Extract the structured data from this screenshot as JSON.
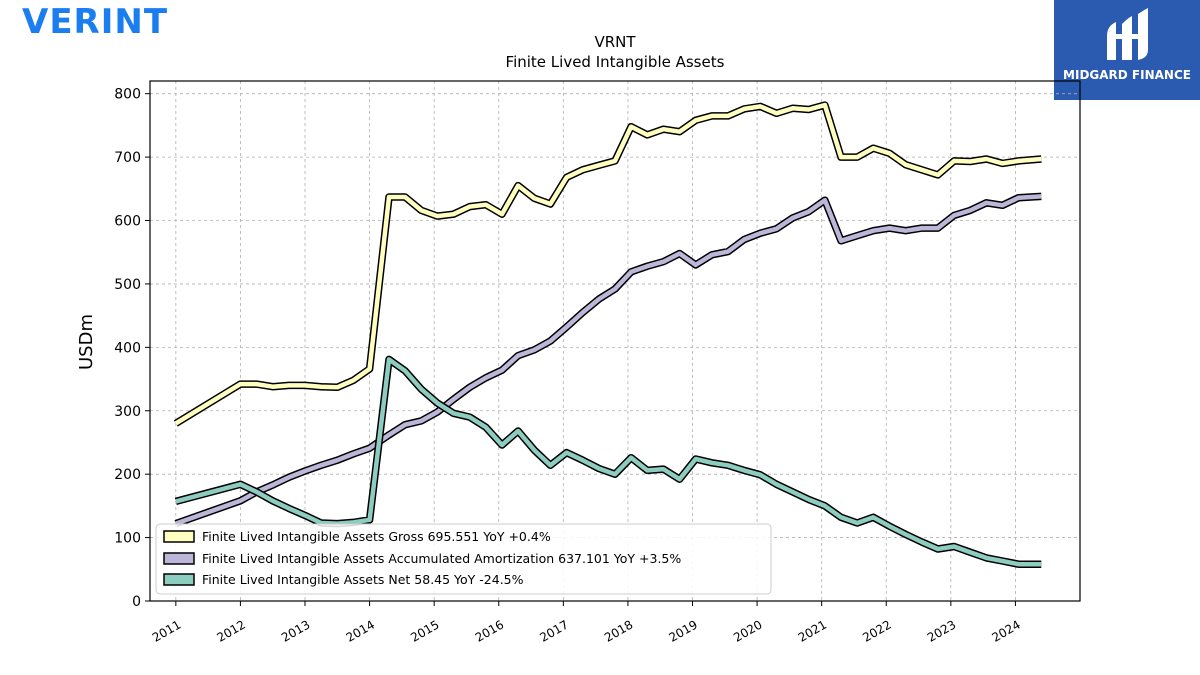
{
  "header": {
    "brand_logo_text": "VERINT",
    "brand_color": "#1a7ef0",
    "publisher_name": "MIDGARD FINANCE",
    "publisher_color": "#2a5bb0"
  },
  "chart_data": {
    "type": "line",
    "title": "VRNT",
    "subtitle": "Finite Lived Intangible Assets",
    "xlabel": "",
    "ylabel": "USDm",
    "xlim": [
      2010.6,
      2025.0
    ],
    "ylim": [
      0,
      820
    ],
    "yticks": [
      0,
      100,
      200,
      300,
      400,
      500,
      600,
      700,
      800
    ],
    "xticks": [
      2011,
      2012,
      2013,
      2014,
      2015,
      2016,
      2017,
      2018,
      2019,
      2020,
      2021,
      2022,
      2023,
      2024
    ],
    "grid": true,
    "legend_position": "bottom-left",
    "series": [
      {
        "name": "Finite Lived Intangible Assets Gross",
        "label": "Finite Lived Intangible Assets Gross  695.551 YoY +0.4%",
        "color": "#ffffc0",
        "x": [
          2011.0,
          2012.0,
          2012.25,
          2012.5,
          2012.75,
          2013.0,
          2013.25,
          2013.5,
          2013.75,
          2014.0,
          2014.3,
          2014.55,
          2014.8,
          2015.05,
          2015.3,
          2015.55,
          2015.8,
          2016.05,
          2016.3,
          2016.55,
          2016.8,
          2017.05,
          2017.3,
          2017.55,
          2017.8,
          2018.05,
          2018.3,
          2018.55,
          2018.8,
          2019.05,
          2019.3,
          2019.55,
          2019.8,
          2020.05,
          2020.3,
          2020.55,
          2020.8,
          2021.05,
          2021.3,
          2021.55,
          2021.8,
          2022.05,
          2022.3,
          2022.55,
          2022.8,
          2023.05,
          2023.3,
          2023.55,
          2023.8,
          2024.05,
          2024.4
        ],
        "values": [
          280,
          342,
          342,
          338,
          340,
          340,
          338,
          337,
          348,
          366,
          637,
          637,
          616,
          607,
          610,
          622,
          625,
          610,
          655,
          635,
          626,
          668,
          680,
          687,
          694,
          748,
          735,
          744,
          740,
          758,
          765,
          765,
          776,
          780,
          769,
          777,
          775,
          782,
          700,
          700,
          714,
          706,
          688,
          680,
          672,
          694,
          693,
          697,
          690,
          694,
          697
        ]
      },
      {
        "name": "Finite Lived Intangible Assets Accumulated Amortization",
        "label": "Finite Lived Intangible Assets Accumulated Amortization  637.101 YoY +3.5%",
        "color": "#bcb6d8",
        "x": [
          2011.0,
          2012.0,
          2012.25,
          2012.5,
          2012.75,
          2013.0,
          2013.25,
          2013.5,
          2013.75,
          2014.0,
          2014.3,
          2014.55,
          2014.8,
          2015.05,
          2015.3,
          2015.55,
          2015.8,
          2016.05,
          2016.3,
          2016.55,
          2016.8,
          2017.05,
          2017.3,
          2017.55,
          2017.8,
          2018.05,
          2018.3,
          2018.55,
          2018.8,
          2019.05,
          2019.3,
          2019.55,
          2019.8,
          2020.05,
          2020.3,
          2020.55,
          2020.8,
          2021.05,
          2021.3,
          2021.55,
          2021.8,
          2022.05,
          2022.3,
          2022.55,
          2022.8,
          2023.05,
          2023.3,
          2023.55,
          2023.8,
          2024.05,
          2024.4
        ],
        "values": [
          122,
          158,
          172,
          183,
          195,
          205,
          214,
          222,
          232,
          241,
          262,
          278,
          284,
          298,
          318,
          337,
          352,
          364,
          387,
          396,
          410,
          432,
          455,
          476,
          492,
          519,
          528,
          535,
          548,
          530,
          546,
          551,
          570,
          580,
          587,
          604,
          614,
          632,
          568,
          576,
          584,
          588,
          584,
          588,
          588,
          608,
          616,
          628,
          624,
          636,
          638
        ]
      },
      {
        "name": "Finite Lived Intangible Assets Net",
        "label": "Finite Lived Intangible Assets Net  58.45 YoY -24.5%",
        "color": "#8dcdc0",
        "x": [
          2011.0,
          2012.0,
          2012.25,
          2012.5,
          2012.75,
          2013.0,
          2013.25,
          2013.5,
          2013.75,
          2014.0,
          2014.3,
          2014.55,
          2014.8,
          2015.05,
          2015.3,
          2015.55,
          2015.8,
          2016.05,
          2016.3,
          2016.55,
          2016.8,
          2017.05,
          2017.3,
          2017.55,
          2017.8,
          2018.05,
          2018.3,
          2018.55,
          2018.8,
          2019.05,
          2019.3,
          2019.55,
          2019.8,
          2020.05,
          2020.3,
          2020.55,
          2020.8,
          2021.05,
          2021.3,
          2021.55,
          2021.8,
          2022.05,
          2022.3,
          2022.55,
          2022.8,
          2023.05,
          2023.3,
          2023.55,
          2023.8,
          2024.05,
          2024.4
        ],
        "values": [
          157,
          184,
          172,
          158,
          146,
          135,
          123,
          122,
          124,
          128,
          381,
          363,
          334,
          312,
          296,
          290,
          274,
          246,
          268,
          238,
          214,
          234,
          222,
          209,
          200,
          226,
          206,
          208,
          192,
          224,
          218,
          214,
          206,
          199,
          184,
          172,
          160,
          150,
          132,
          123,
          132,
          118,
          105,
          93,
          82,
          86,
          77,
          68,
          63,
          58,
          58
        ]
      }
    ]
  }
}
